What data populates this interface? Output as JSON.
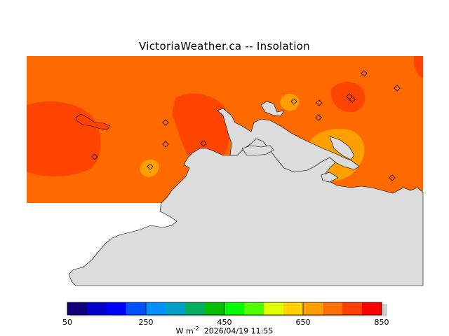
{
  "title": "VictoriaWeather.ca -- Insolation",
  "colorbar": {
    "colors": [
      "#10007a",
      "#0000cc",
      "#0000ff",
      "#0050ff",
      "#0090ff",
      "#00a0c8",
      "#00b060",
      "#00c000",
      "#00ff00",
      "#50ff00",
      "#e0ff00",
      "#ffd200",
      "#ffa000",
      "#ff7000",
      "#ff4000",
      "#ff0000"
    ],
    "ticks": [
      "50",
      "250",
      "450",
      "650",
      "850"
    ]
  },
  "footer": {
    "unit_prefix": "W m",
    "unit_exp": "-2",
    "timestamp": "2026/04/19 11:55"
  },
  "colors": {
    "base": "#ff6a00",
    "high": "#ff4400",
    "low": "#ffa000",
    "land": "#dcdcdc"
  }
}
